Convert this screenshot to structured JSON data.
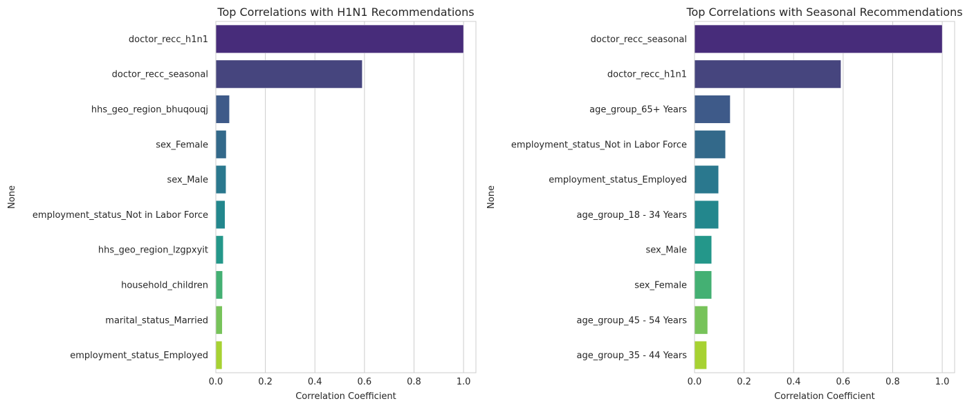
{
  "chart_data": [
    {
      "type": "bar",
      "orientation": "horizontal",
      "title": "Top Correlations with H1N1 Recommendations",
      "xlabel": "Correlation Coefficient",
      "ylabel": "None",
      "xlim": [
        0,
        1.05
      ],
      "xticks": [
        0.0,
        0.2,
        0.4,
        0.6,
        0.8,
        1.0
      ],
      "grid": "x",
      "categories": [
        "doctor_recc_h1n1",
        "doctor_recc_seasonal",
        "hhs_geo_region_bhuqouqj",
        "sex_Female",
        "sex_Male",
        "employment_status_Not in Labor Force",
        "hhs_geo_region_lzgpxyit",
        "household_children",
        "marital_status_Married",
        "employment_status_Employed"
      ],
      "values": [
        1.0,
        0.591,
        0.055,
        0.042,
        0.041,
        0.037,
        0.03,
        0.027,
        0.026,
        0.025
      ],
      "colors": [
        "#472c7a",
        "#46457e",
        "#3e5a89",
        "#33698a",
        "#2a788e",
        "#23878d",
        "#24978a",
        "#44b073",
        "#77c35a",
        "#a7d232"
      ]
    },
    {
      "type": "bar",
      "orientation": "horizontal",
      "title": "Top Correlations with Seasonal Recommendations",
      "xlabel": "Correlation Coefficient",
      "ylabel": "None",
      "xlim": [
        0,
        1.05
      ],
      "xticks": [
        0.0,
        0.2,
        0.4,
        0.6,
        0.8,
        1.0
      ],
      "grid": "x",
      "categories": [
        "doctor_recc_seasonal",
        "doctor_recc_h1n1",
        "age_group_65+ Years",
        "employment_status_Not in Labor Force",
        "employment_status_Employed",
        "age_group_18 - 34 Years",
        "sex_Male",
        "sex_Female",
        "age_group_45 - 54 Years",
        "age_group_35 - 44 Years"
      ],
      "values": [
        1.0,
        0.591,
        0.144,
        0.125,
        0.097,
        0.097,
        0.069,
        0.069,
        0.053,
        0.049
      ],
      "colors": [
        "#472c7a",
        "#46457e",
        "#3e5a89",
        "#33698a",
        "#2a788e",
        "#23878d",
        "#24978a",
        "#44b073",
        "#77c35a",
        "#a7d232"
      ]
    }
  ]
}
